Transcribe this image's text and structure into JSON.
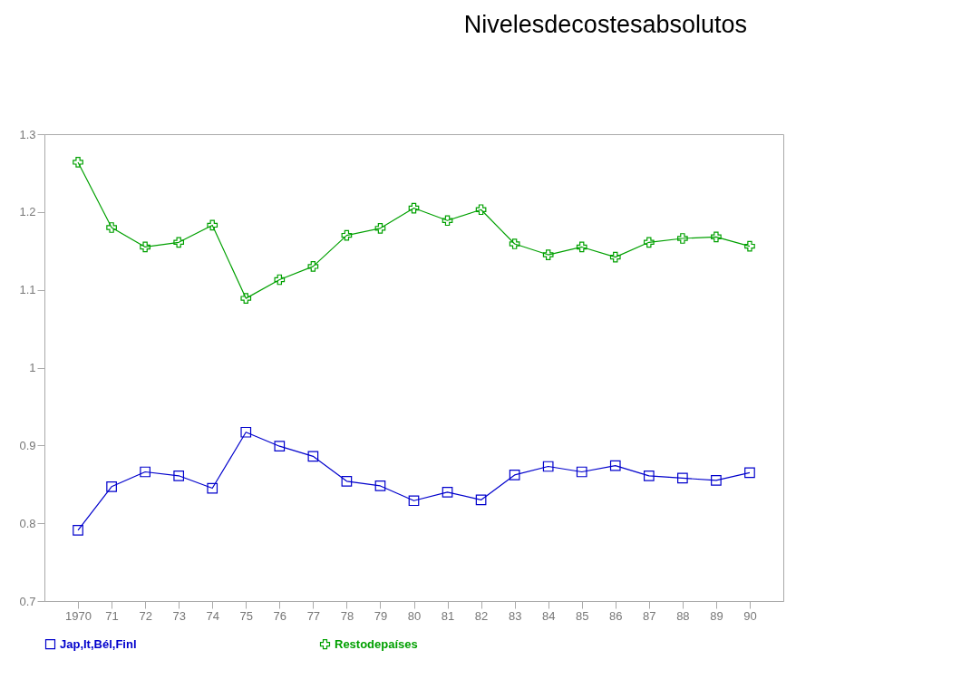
{
  "chart_data": {
    "type": "line",
    "title": "Nivelesdecostesabsolutos",
    "categories": [
      "1970",
      "71",
      "72",
      "73",
      "74",
      "75",
      "76",
      "77",
      "78",
      "79",
      "80",
      "81",
      "82",
      "83",
      "84",
      "85",
      "86",
      "87",
      "88",
      "89",
      "90"
    ],
    "series": [
      {
        "name": "Jap,It,Bél,Finl",
        "color": "#0000cc",
        "marker": "square",
        "values": [
          0.791,
          0.847,
          0.866,
          0.861,
          0.845,
          0.917,
          0.899,
          0.886,
          0.854,
          0.848,
          0.829,
          0.84,
          0.83,
          0.862,
          0.873,
          0.866,
          0.874,
          0.861,
          0.858,
          0.855,
          0.865
        ]
      },
      {
        "name": "Restodepaíses",
        "color": "#00a000",
        "marker": "cross",
        "values": [
          1.264,
          1.18,
          1.155,
          1.161,
          1.183,
          1.089,
          1.113,
          1.13,
          1.17,
          1.179,
          1.205,
          1.189,
          1.203,
          1.159,
          1.145,
          1.155,
          1.142,
          1.161,
          1.166,
          1.168,
          1.156
        ]
      }
    ],
    "ylim": [
      0.7,
      1.3
    ],
    "yticks": [
      0.7,
      0.8,
      0.9,
      1,
      1.1,
      1.2,
      1.3
    ],
    "grid": false,
    "legend": "bottom",
    "line_style": "solid"
  }
}
